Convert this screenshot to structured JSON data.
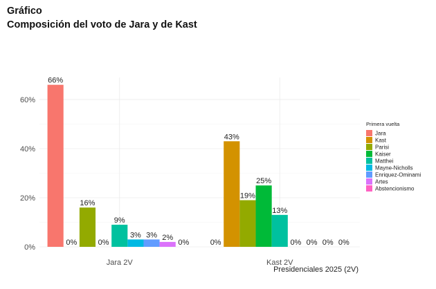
{
  "heading": {
    "line1": "Gráfico",
    "line2": "Composición del voto de Jara y de Kast"
  },
  "chart_data": {
    "type": "bar",
    "categories": [
      "Jara 2V",
      "Kast 2V"
    ],
    "xlabel": "Presidenciales 2025 (2V)",
    "ylabel": "",
    "ylim": [
      0,
      0.69
    ],
    "yticks": [
      0,
      0.2,
      0.4,
      0.6
    ],
    "ytick_labels": [
      "0%",
      "20%",
      "40%",
      "60%"
    ],
    "legend_title": "Primera vuelta",
    "legend_position": "right",
    "grid": true,
    "series": [
      {
        "name": "Jara",
        "color": "#F8766D",
        "values": [
          0.66,
          0.0
        ],
        "labels": [
          "66%",
          "0%"
        ]
      },
      {
        "name": "Kast",
        "color": "#D39200",
        "values": [
          0.0,
          0.43
        ],
        "labels": [
          "0%",
          "43%"
        ]
      },
      {
        "name": "Parisi",
        "color": "#93AA00",
        "values": [
          0.16,
          0.19
        ],
        "labels": [
          "16%",
          "19%"
        ]
      },
      {
        "name": "Kaiser",
        "color": "#00BA38",
        "values": [
          0.0,
          0.25
        ],
        "labels": [
          "0%",
          "25%"
        ]
      },
      {
        "name": "Matthei",
        "color": "#00C19F",
        "values": [
          0.09,
          0.13
        ],
        "labels": [
          "9%",
          "13%"
        ]
      },
      {
        "name": "Mayne-Nicholls",
        "color": "#00B9E3",
        "values": [
          0.03,
          0.0
        ],
        "labels": [
          "3%",
          "0%"
        ]
      },
      {
        "name": "Enriquez-Ominami",
        "color": "#619CFF",
        "values": [
          0.03,
          0.0
        ],
        "labels": [
          "3%",
          "0%"
        ]
      },
      {
        "name": "Artes",
        "color": "#DB72FB",
        "values": [
          0.02,
          0.0
        ],
        "labels": [
          "2%",
          "0%"
        ]
      },
      {
        "name": "Abstencionismo",
        "color": "#FF61C3",
        "values": [
          0.0,
          0.0
        ],
        "labels": [
          "0%",
          "0%"
        ]
      }
    ]
  }
}
